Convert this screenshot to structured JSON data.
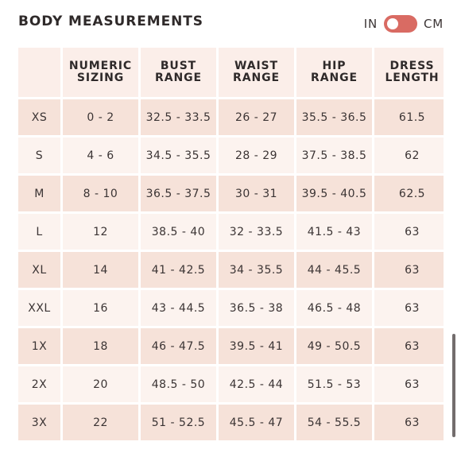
{
  "header": {
    "title": "BODY MEASUREMENTS",
    "unit_left": "IN",
    "unit_right": "CM"
  },
  "table": {
    "columns": [
      "NUMERIC\nSIZING",
      "BUST\nRANGE",
      "WAIST\nRANGE",
      "HIP\nRANGE",
      "DRESS\nLENGTH"
    ],
    "rows": [
      {
        "size": "XS",
        "numeric": "0 - 2",
        "bust": "32.5 - 33.5",
        "waist": "26 - 27",
        "hip": "35.5 - 36.5",
        "length": "61.5"
      },
      {
        "size": "S",
        "numeric": "4 - 6",
        "bust": "34.5 - 35.5",
        "waist": "28 - 29",
        "hip": "37.5 - 38.5",
        "length": "62"
      },
      {
        "size": "M",
        "numeric": "8 - 10",
        "bust": "36.5 - 37.5",
        "waist": "30 - 31",
        "hip": "39.5 - 40.5",
        "length": "62.5"
      },
      {
        "size": "L",
        "numeric": "12",
        "bust": "38.5 - 40",
        "waist": "32 - 33.5",
        "hip": "41.5 - 43",
        "length": "63"
      },
      {
        "size": "XL",
        "numeric": "14",
        "bust": "41 - 42.5",
        "waist": "34 - 35.5",
        "hip": "44 - 45.5",
        "length": "63"
      },
      {
        "size": "XXL",
        "numeric": "16",
        "bust": "43 - 44.5",
        "waist": "36.5 - 38",
        "hip": "46.5 - 48",
        "length": "63"
      },
      {
        "size": "1X",
        "numeric": "18",
        "bust": "46 - 47.5",
        "waist": "39.5 - 41",
        "hip": "49 - 50.5",
        "length": "63"
      },
      {
        "size": "2X",
        "numeric": "20",
        "bust": "48.5 - 50",
        "waist": "42.5 - 44",
        "hip": "51.5 - 53",
        "length": "63"
      },
      {
        "size": "3X",
        "numeric": "22",
        "bust": "51 - 52.5",
        "waist": "45.5 - 47",
        "hip": "54 - 55.5",
        "length": "63"
      }
    ]
  },
  "colors": {
    "accent": "#d96b63",
    "row_odd": "#f6e2d9",
    "row_even": "#fcf3ef",
    "header_bg": "#fbeee9"
  }
}
